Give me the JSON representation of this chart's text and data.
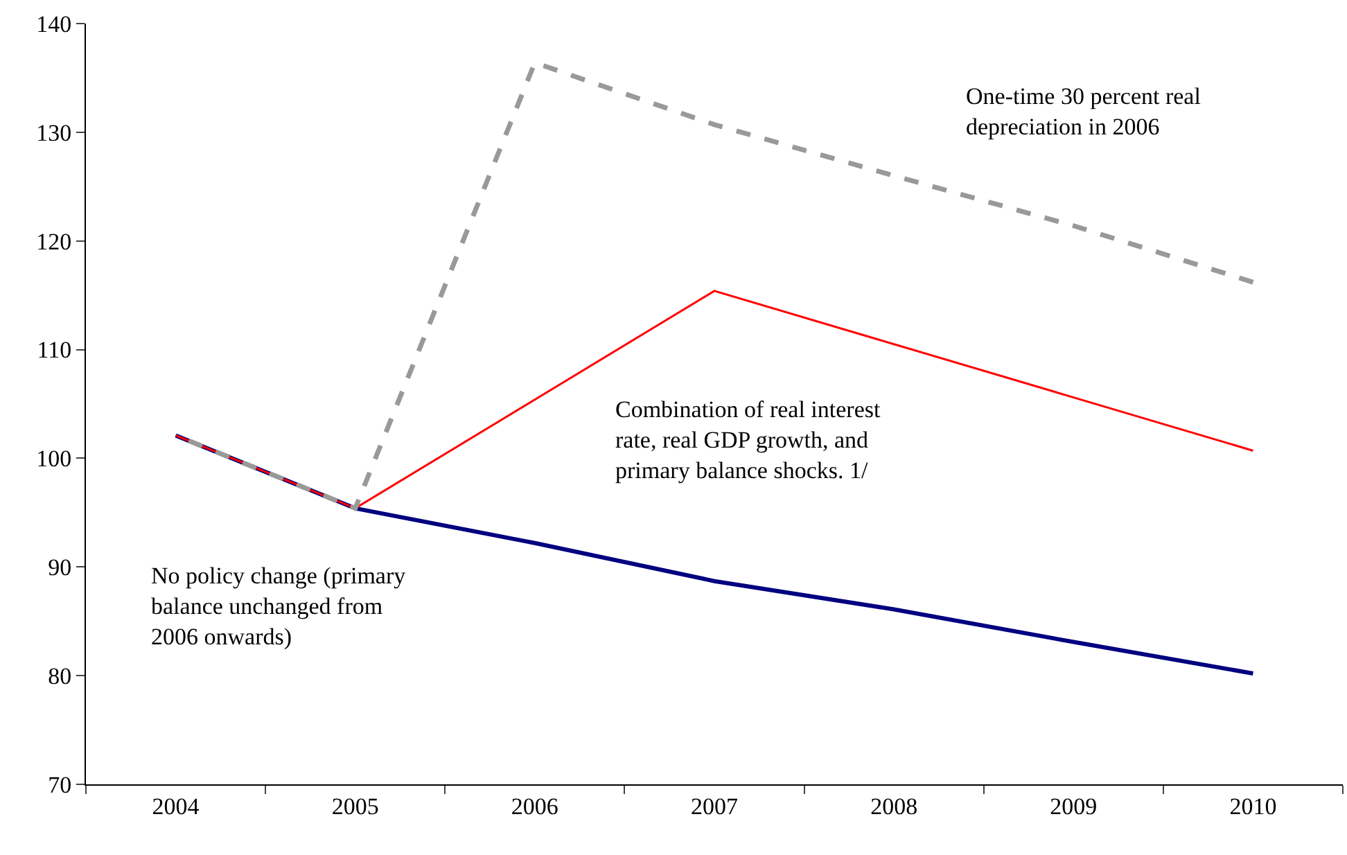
{
  "chart_data": {
    "type": "line",
    "categories": [
      "2004",
      "2005",
      "2006",
      "2007",
      "2008",
      "2009",
      "2010"
    ],
    "series": [
      {
        "name": "No policy change (primary balance unchanged from 2006 onwards)",
        "color": "#000080",
        "line_style": "solid",
        "values": [
          102.1,
          95.4,
          92.2,
          88.7,
          86.1,
          83.1,
          80.2
        ]
      },
      {
        "name": "Combination of real interest rate, real GDP growth, and primary balance shocks. 1/",
        "color": "#ff0000",
        "line_style": "solid",
        "values": [
          102.1,
          95.4,
          105.4,
          115.4,
          110.5,
          105.6,
          100.7
        ]
      },
      {
        "name": "One-time 30 percent real depreciation in 2006",
        "color": "#999999",
        "line_style": "dashed",
        "values": [
          102.1,
          95.4,
          136.4,
          130.7,
          126.0,
          121.4,
          116.2
        ]
      }
    ],
    "ylim": [
      70,
      140
    ],
    "yticks": [
      70,
      80,
      90,
      100,
      110,
      120,
      130,
      140
    ],
    "legend": false,
    "marker": "none"
  }
}
